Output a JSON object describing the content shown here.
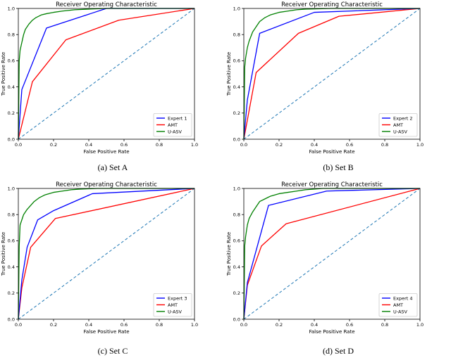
{
  "colors": {
    "expert": "#0000ff",
    "amt": "#ff0000",
    "uasv": "#008000",
    "chance": "#1f77b4"
  },
  "chart_data": [
    {
      "type": "line",
      "title": "Receiver Operating Characteristic",
      "xlabel": "False Positive Rate",
      "ylabel": "True Positive Rate",
      "xlim": [
        0.0,
        1.0
      ],
      "ylim": [
        0.0,
        1.0
      ],
      "xticks": [
        "0.0",
        "0.2",
        "0.4",
        "0.6",
        "0.8",
        "1.0"
      ],
      "yticks": [
        "0.0",
        "0.2",
        "0.4",
        "0.6",
        "0.8",
        "1.0"
      ],
      "legend_position": "bottom-right",
      "caption": "(a) Set A",
      "series": [
        {
          "name": "Expert 1",
          "color": "#0000ff",
          "x": [
            0.0,
            0.02,
            0.16,
            0.5,
            1.0
          ],
          "y": [
            0.0,
            0.38,
            0.85,
            1.0,
            1.0
          ]
        },
        {
          "name": "AMT",
          "color": "#ff0000",
          "x": [
            0.0,
            0.08,
            0.27,
            0.57,
            1.0
          ],
          "y": [
            0.0,
            0.44,
            0.76,
            0.91,
            1.0
          ]
        },
        {
          "name": "U-ASV",
          "color": "#008000",
          "x": [
            0.0,
            0.005,
            0.01,
            0.02,
            0.03,
            0.04,
            0.06,
            0.08,
            0.1,
            0.13,
            0.16,
            0.2,
            0.25,
            0.32,
            0.4,
            0.5,
            0.6,
            0.75,
            1.0
          ],
          "y": [
            0.0,
            0.6,
            0.68,
            0.74,
            0.8,
            0.84,
            0.88,
            0.91,
            0.93,
            0.95,
            0.96,
            0.97,
            0.98,
            0.99,
            0.995,
            1.0,
            1.0,
            1.0,
            1.0
          ]
        },
        {
          "name": "",
          "color": "#1f77b4",
          "dashed": true,
          "x": [
            0.0,
            1.0
          ],
          "y": [
            0.0,
            1.0
          ]
        }
      ]
    },
    {
      "type": "line",
      "title": "Receiver Operating Characteristic",
      "xlabel": "False Positive Rate",
      "ylabel": "True Positive Rate",
      "xlim": [
        0.0,
        1.0
      ],
      "ylim": [
        0.0,
        1.0
      ],
      "xticks": [
        "0.0",
        "0.2",
        "0.4",
        "0.6",
        "0.8",
        "1.0"
      ],
      "yticks": [
        "0.0",
        "0.2",
        "0.4",
        "0.6",
        "0.8",
        "1.0"
      ],
      "legend_position": "bottom-right",
      "caption": "(b) Set B",
      "series": [
        {
          "name": "Expert 2",
          "color": "#0000ff",
          "x": [
            0.0,
            0.02,
            0.09,
            0.4,
            1.0
          ],
          "y": [
            0.0,
            0.3,
            0.81,
            0.97,
            1.0
          ]
        },
        {
          "name": "AMT",
          "color": "#ff0000",
          "x": [
            0.0,
            0.07,
            0.31,
            0.54,
            1.0
          ],
          "y": [
            0.0,
            0.51,
            0.81,
            0.94,
            1.0
          ]
        },
        {
          "name": "U-ASV",
          "color": "#008000",
          "x": [
            0.0,
            0.005,
            0.01,
            0.02,
            0.03,
            0.05,
            0.07,
            0.09,
            0.12,
            0.15,
            0.2,
            0.25,
            0.3,
            0.35,
            0.5,
            0.65,
            0.8,
            1.0
          ],
          "y": [
            0.0,
            0.55,
            0.62,
            0.7,
            0.75,
            0.82,
            0.86,
            0.9,
            0.93,
            0.95,
            0.97,
            0.98,
            0.99,
            0.995,
            1.0,
            1.0,
            1.0,
            1.0
          ]
        },
        {
          "name": "",
          "color": "#1f77b4",
          "dashed": true,
          "x": [
            0.0,
            1.0
          ],
          "y": [
            0.0,
            1.0
          ]
        }
      ]
    },
    {
      "type": "line",
      "title": "Receiver Operating Characteristic",
      "xlabel": "False Positive Rate",
      "ylabel": "True Positive Rate",
      "xlim": [
        0.0,
        1.0
      ],
      "ylim": [
        0.0,
        1.0
      ],
      "xticks": [
        "0.0",
        "0.2",
        "0.4",
        "0.6",
        "0.8",
        "1.0"
      ],
      "yticks": [
        "0.0",
        "0.2",
        "0.4",
        "0.6",
        "0.8",
        "1.0"
      ],
      "legend_position": "bottom-right",
      "caption": "(c) Set C",
      "series": [
        {
          "name": "Expert 3",
          "color": "#0000ff",
          "x": [
            0.0,
            0.02,
            0.05,
            0.11,
            0.2,
            0.42,
            1.0
          ],
          "y": [
            0.0,
            0.3,
            0.55,
            0.76,
            0.83,
            0.96,
            1.0
          ]
        },
        {
          "name": "AMT",
          "color": "#ff0000",
          "x": [
            0.0,
            0.02,
            0.07,
            0.21,
            1.0
          ],
          "y": [
            0.0,
            0.24,
            0.55,
            0.77,
            1.0
          ]
        },
        {
          "name": "U-ASV",
          "color": "#008000",
          "x": [
            0.0,
            0.005,
            0.01,
            0.02,
            0.03,
            0.05,
            0.07,
            0.09,
            0.12,
            0.15,
            0.2,
            0.25,
            0.3,
            0.35,
            0.45,
            0.6,
            0.8,
            1.0
          ],
          "y": [
            0.0,
            0.56,
            0.72,
            0.76,
            0.8,
            0.84,
            0.87,
            0.9,
            0.93,
            0.95,
            0.97,
            0.98,
            0.99,
            0.995,
            1.0,
            1.0,
            1.0,
            1.0
          ]
        },
        {
          "name": "",
          "color": "#1f77b4",
          "dashed": true,
          "x": [
            0.0,
            1.0
          ],
          "y": [
            0.0,
            1.0
          ]
        }
      ]
    },
    {
      "type": "line",
      "title": "Receiver Operating Characteristic",
      "xlabel": "False Positive Rate",
      "ylabel": "True Positive Rate",
      "xlim": [
        0.0,
        1.0
      ],
      "ylim": [
        0.0,
        1.0
      ],
      "xticks": [
        "0.0",
        "0.2",
        "0.4",
        "0.6",
        "0.8",
        "1.0"
      ],
      "yticks": [
        "0.0",
        "0.2",
        "0.4",
        "0.6",
        "0.8",
        "1.0"
      ],
      "legend_position": "bottom-right",
      "caption": "(d) Set D",
      "series": [
        {
          "name": "Expert 4",
          "color": "#0000ff",
          "x": [
            0.0,
            0.02,
            0.14,
            0.47,
            1.0
          ],
          "y": [
            0.0,
            0.28,
            0.87,
            0.98,
            1.0
          ]
        },
        {
          "name": "AMT",
          "color": "#ff0000",
          "x": [
            0.0,
            0.02,
            0.1,
            0.24,
            1.0
          ],
          "y": [
            0.0,
            0.26,
            0.56,
            0.73,
            1.0
          ]
        },
        {
          "name": "U-ASV",
          "color": "#008000",
          "x": [
            0.0,
            0.005,
            0.01,
            0.02,
            0.03,
            0.05,
            0.07,
            0.09,
            0.12,
            0.15,
            0.2,
            0.25,
            0.3,
            0.35,
            0.45,
            0.6,
            0.8,
            1.0
          ],
          "y": [
            0.0,
            0.56,
            0.63,
            0.72,
            0.77,
            0.82,
            0.86,
            0.9,
            0.92,
            0.94,
            0.96,
            0.97,
            0.98,
            0.99,
            1.0,
            1.0,
            1.0,
            1.0
          ]
        },
        {
          "name": "",
          "color": "#1f77b4",
          "dashed": true,
          "x": [
            0.0,
            1.0
          ],
          "y": [
            0.0,
            1.0
          ]
        }
      ]
    }
  ]
}
